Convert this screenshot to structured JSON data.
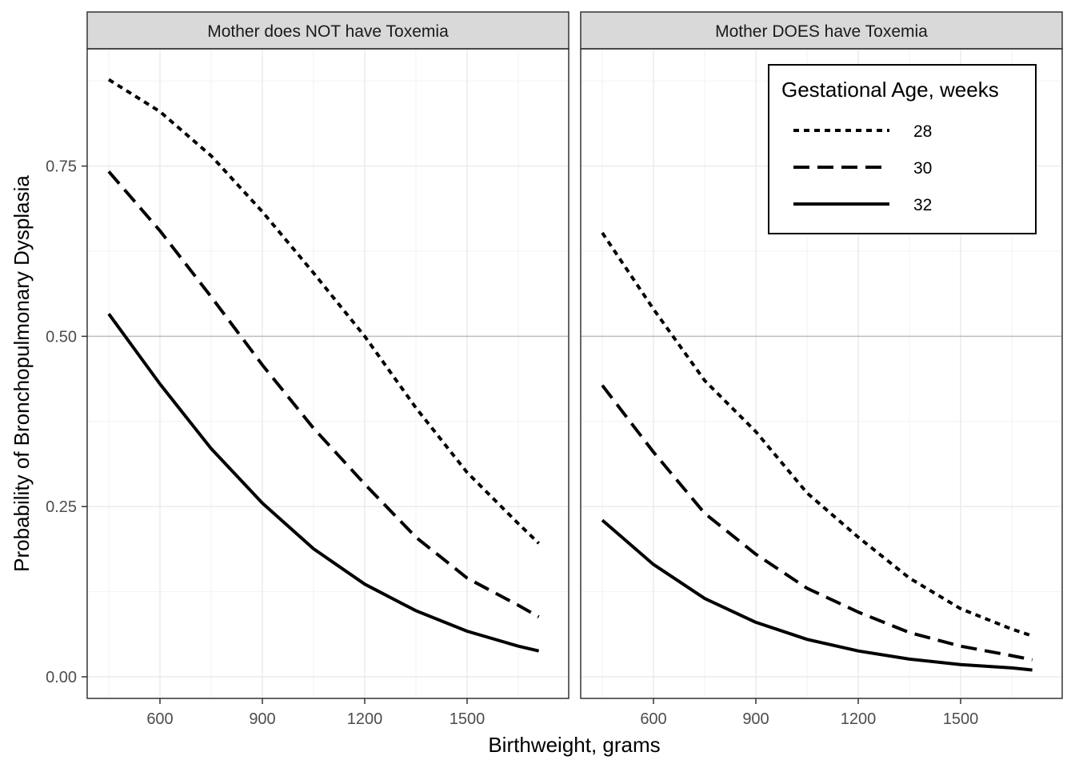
{
  "chart_data": {
    "type": "line",
    "xlabel": "Birthweight, grams",
    "ylabel": "Probability of Bronchopulmonary Dysplasia",
    "xlim": [
      385,
      1765
    ],
    "ylim": [
      -0.03,
      0.94
    ],
    "x_ticks": [
      600,
      900,
      1200,
      1500
    ],
    "x_tick_labels": [
      "600",
      "900",
      "1200",
      "1500"
    ],
    "y_ticks": [
      0.0,
      0.25,
      0.5,
      0.75
    ],
    "y_tick_labels": [
      "0.00",
      "0.25",
      "0.50",
      "0.75"
    ],
    "grid": true,
    "legend": {
      "title": "Gestational Age, weeks",
      "position": "inside-top-right",
      "entries": [
        {
          "label": "28",
          "dash": "dotted"
        },
        {
          "label": "30",
          "dash": "dashed"
        },
        {
          "label": "32",
          "dash": "solid"
        }
      ]
    },
    "x": [
      450,
      600,
      750,
      900,
      1050,
      1200,
      1350,
      1500,
      1650,
      1710
    ],
    "panels": [
      {
        "strip": "Mother does NOT have Toxemia",
        "series": [
          {
            "name": "28",
            "dash": "dotted",
            "values": [
              0.877,
              0.83,
              0.765,
              0.683,
              0.593,
              0.5,
              0.395,
              0.3,
              0.225,
              0.196
            ]
          },
          {
            "name": "30",
            "dash": "dashed",
            "values": [
              0.742,
              0.655,
              0.558,
              0.458,
              0.365,
              0.283,
              0.205,
              0.145,
              0.105,
              0.088
            ]
          },
          {
            "name": "32",
            "dash": "solid",
            "values": [
              0.533,
              0.43,
              0.335,
              0.255,
              0.188,
              0.136,
              0.097,
              0.067,
              0.045,
              0.038
            ]
          }
        ]
      },
      {
        "strip": "Mother DOES have Toxemia",
        "series": [
          {
            "name": "28",
            "dash": "dotted",
            "values": [
              0.652,
              0.54,
              0.435,
              0.36,
              0.27,
              0.205,
              0.145,
              0.1,
              0.07,
              0.06
            ]
          },
          {
            "name": "30",
            "dash": "dashed",
            "values": [
              0.428,
              0.33,
              0.24,
              0.18,
              0.13,
              0.095,
              0.065,
              0.045,
              0.031,
              0.025
            ]
          },
          {
            "name": "32",
            "dash": "solid",
            "values": [
              0.23,
              0.165,
              0.115,
              0.08,
              0.055,
              0.038,
              0.026,
              0.018,
              0.013,
              0.01
            ]
          }
        ]
      }
    ]
  }
}
